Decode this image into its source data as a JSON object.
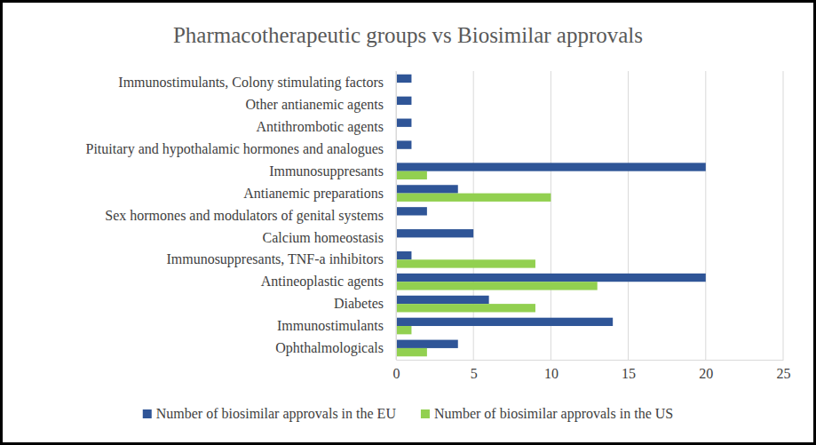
{
  "chart_data": {
    "type": "bar",
    "orientation": "horizontal",
    "title": "Pharmacotherapeutic groups vs Biosimilar approvals",
    "categories": [
      "Immunostimulants, Colony stimulating factors",
      "Other antianemic agents",
      "Antithrombotic agents",
      "Pituitary and hypothalamic hormones and analogues",
      "Immunosuppresants",
      "Antianemic preparations",
      "Sex hormones and modulators of genital systems",
      "Calcium homeostasis",
      "Immunosuppresants, TNF-a inhibitors",
      "Antineoplastic agents",
      "Diabetes",
      "Immunostimulants",
      "Ophthalmologicals"
    ],
    "series": [
      {
        "name": "Number of biosimilar approvals in the EU",
        "color": "#2f5597",
        "values": [
          1,
          1,
          1,
          1,
          20,
          4,
          2,
          5,
          1,
          20,
          6,
          14,
          4
        ]
      },
      {
        "name": "Number of biosimilar approvals in the US",
        "color": "#92d050",
        "values": [
          0,
          0,
          0,
          0,
          2,
          10,
          0,
          0,
          9,
          13,
          9,
          1,
          2
        ]
      }
    ],
    "xlim": [
      0,
      25
    ],
    "xticks": [
      0,
      5,
      10,
      15,
      20,
      25
    ],
    "grid": true,
    "legend": "bottom"
  }
}
